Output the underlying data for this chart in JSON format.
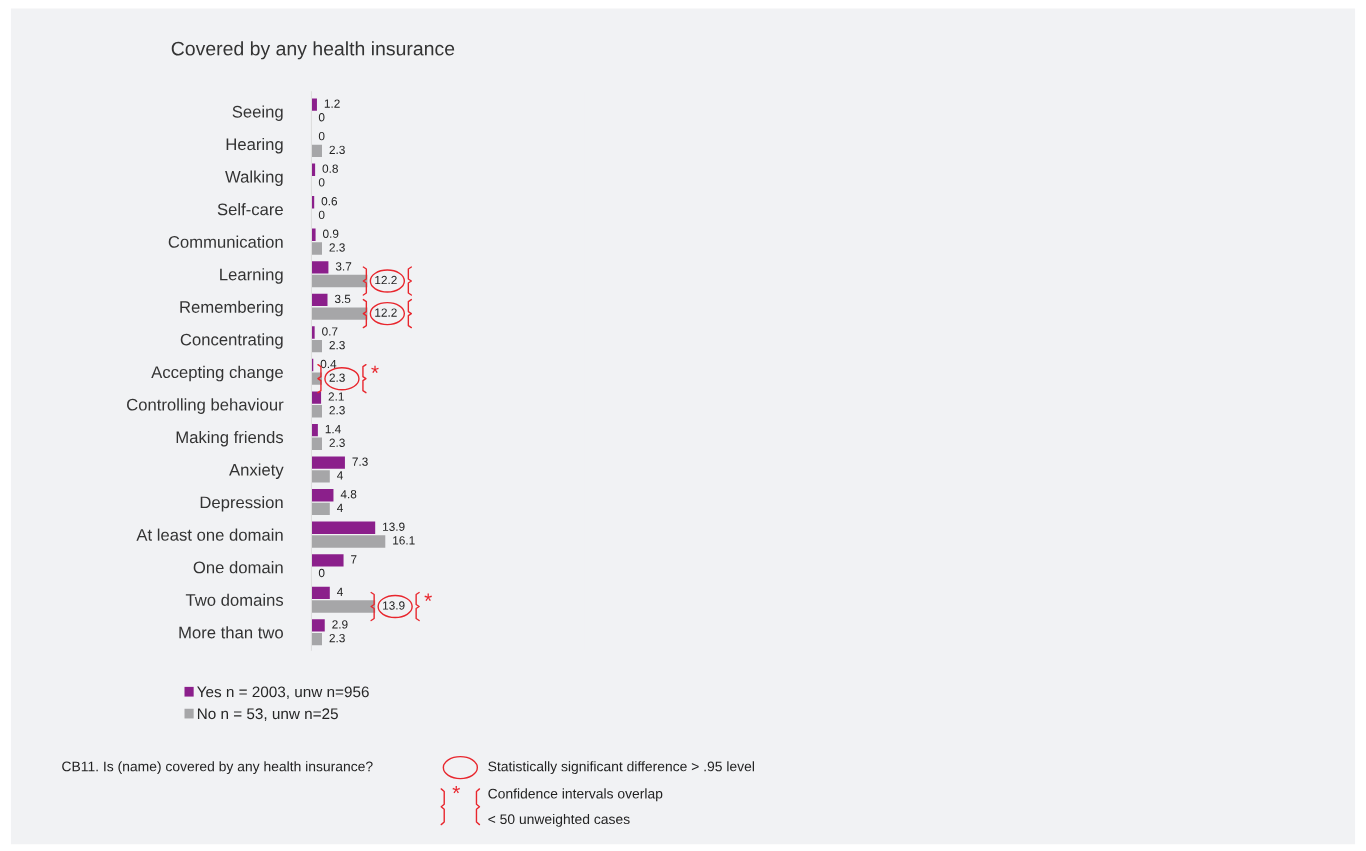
{
  "chart_data": {
    "type": "bar",
    "orientation": "horizontal",
    "title": "Covered by any health insurance",
    "categories": [
      "Seeing",
      "Hearing",
      "Walking",
      "Self-care",
      "Communication",
      "Learning",
      "Remembering",
      "Concentrating",
      "Accepting change",
      "Controlling behaviour",
      "Making friends",
      "Anxiety",
      "Depression",
      "At least one domain",
      "One domain",
      "Two domains",
      "More than two"
    ],
    "series": [
      {
        "name": "Yes n = 2003, unw n=956",
        "color": "#8b1f8b",
        "values": [
          1.2,
          0,
          0.8,
          0.6,
          0.9,
          3.7,
          3.5,
          0.7,
          0.4,
          2.1,
          1.4,
          7.3,
          4.8,
          13.9,
          7,
          4,
          2.9
        ]
      },
      {
        "name": "No n = 53, unw n=25",
        "color": "#a6a6a8",
        "values": [
          0,
          2.3,
          0,
          0,
          2.3,
          12.2,
          12.2,
          2.3,
          2.3,
          2.3,
          2.3,
          4,
          4,
          16.1,
          0,
          13.9,
          2.3
        ]
      }
    ],
    "data_labels": true,
    "legend": "bottom left",
    "grid": false,
    "annotations": [
      "CB11. Is (name) covered by any health insurance?",
      "Statistically significant difference > .95 level",
      "*",
      "Confidence intervals overlap",
      "< 50 unweighted cases",
      {
        "text": "*",
        "x": 2.3,
        "y": "Accepting change"
      },
      {
        "text": "*",
        "x": 13.9,
        "y": "Two domains"
      }
    ]
  }
}
